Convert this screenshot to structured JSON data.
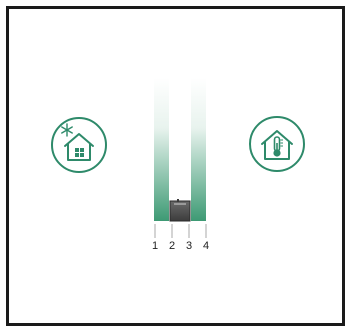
{
  "icons": {
    "left": "cold-house-snowflake-icon",
    "right": "warm-house-thermometer-icon"
  },
  "colors": {
    "accent": "#2e8a6a",
    "pane_bottom": "#3d9a74",
    "frame": "#1a1a1a",
    "spacer": "#5a5a5a"
  },
  "layers": {
    "labels": [
      "1",
      "2",
      "3",
      "4"
    ]
  }
}
